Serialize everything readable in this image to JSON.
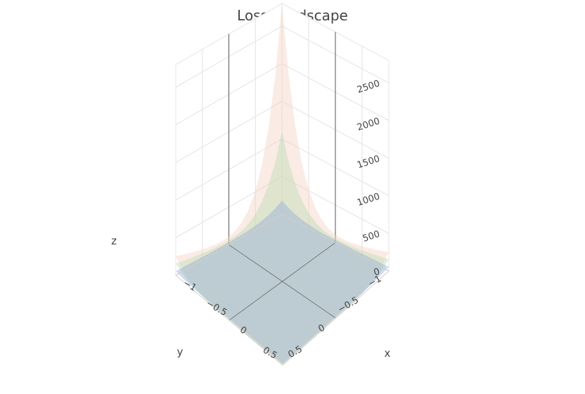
{
  "chart_data": {
    "type": "surface",
    "title": "Loss Landscape",
    "xlabel": "x",
    "ylabel": "y",
    "zlabel": "z",
    "x_ticks": [
      "−1",
      "−0.5",
      "0",
      "0.5"
    ],
    "y_ticks": [
      "−1",
      "−0.5",
      "0",
      "0.5"
    ],
    "z_ticks": [
      "0",
      "500",
      "1000",
      "1500",
      "2000",
      "2500"
    ],
    "xlim": [
      -1,
      1
    ],
    "ylim": [
      -1,
      1
    ],
    "zlim": [
      0,
      2800
    ],
    "grid": true,
    "series": [
      {
        "surface": "surface-1",
        "color": "#f4cfc0",
        "peak_corner_z": 2800,
        "side_corner_z": 420,
        "floor_z": 0
      },
      {
        "surface": "surface-2",
        "color": "#b9dcae",
        "peak_corner_z": 1100,
        "side_corner_z": 260,
        "floor_z": 0
      },
      {
        "surface": "surface-3",
        "color": "#8fa9d9",
        "peak_corner_z": 160,
        "side_corner_z": 60,
        "floor_z": 0
      }
    ]
  }
}
